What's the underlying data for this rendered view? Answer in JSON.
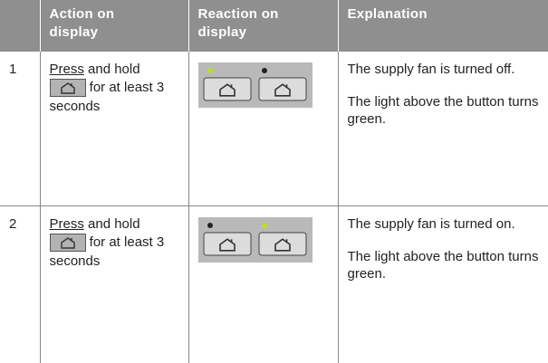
{
  "table": {
    "header": [
      "Action on display",
      "Reaction on display",
      "Explanation"
    ],
    "rows": [
      {
        "number": "1",
        "action": {
          "press": "Press",
          "hold": "and hold",
          "rest": "for at least 3 seconds"
        },
        "explanation": [
          "The supply fan is turned off.",
          "The light above the button turns green."
        ]
      },
      {
        "number": "2",
        "action": {
          "press": "Press",
          "hold": "and hold",
          "rest": "for at least 3 seconds"
        },
        "explanation": [
          "The supply fan is turned on.",
          "The light above the button turns green."
        ]
      }
    ]
  }
}
